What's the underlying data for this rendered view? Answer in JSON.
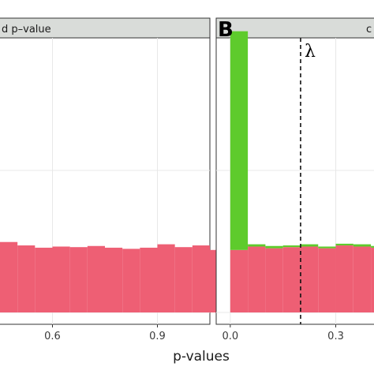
{
  "chart_data": {
    "type": "bar",
    "xlabel": "p-values",
    "colors": {
      "bar_main": "#ee5f74",
      "bar_top": "#5ecb2c",
      "strip_bg": "#d9dcd9",
      "grid": "#e8e8e8"
    },
    "panels": [
      {
        "strip_label": "d p–value",
        "letter": "",
        "xlim": [
          0.45,
          1.05
        ],
        "x_ticks": [
          {
            "value": 0.6,
            "label": "0.6"
          },
          {
            "value": 0.9,
            "label": "0.9"
          }
        ],
        "bins": [
          {
            "x": 0.45,
            "main": 0.124,
            "top": 0
          },
          {
            "x": 0.5,
            "main": 0.118,
            "top": 0
          },
          {
            "x": 0.55,
            "main": 0.114,
            "top": 0
          },
          {
            "x": 0.6,
            "main": 0.116,
            "top": 0
          },
          {
            "x": 0.65,
            "main": 0.115,
            "top": 0
          },
          {
            "x": 0.7,
            "main": 0.117,
            "top": 0
          },
          {
            "x": 0.75,
            "main": 0.114,
            "top": 0
          },
          {
            "x": 0.8,
            "main": 0.112,
            "top": 0
          },
          {
            "x": 0.85,
            "main": 0.114,
            "top": 0
          },
          {
            "x": 0.9,
            "main": 0.12,
            "top": 0
          },
          {
            "x": 0.95,
            "main": 0.115,
            "top": 0
          },
          {
            "x": 1.0,
            "main": 0.118,
            "top": 0
          },
          {
            "x": 1.05,
            "main": 0.11,
            "top": 0
          }
        ]
      },
      {
        "strip_label": "c",
        "letter": "B",
        "xlim": [
          -0.04,
          0.42
        ],
        "x_ticks": [
          {
            "value": 0.0,
            "label": "0.0"
          },
          {
            "value": 0.3,
            "label": "0.3"
          }
        ],
        "lambda_value": 0.2,
        "lambda_label": "λ",
        "bins": [
          {
            "x": 0.0,
            "main": 0.11,
            "top": 0.385
          },
          {
            "x": 0.05,
            "main": 0.116,
            "top": 0.004
          },
          {
            "x": 0.1,
            "main": 0.113,
            "top": 0.004
          },
          {
            "x": 0.15,
            "main": 0.115,
            "top": 0.003
          },
          {
            "x": 0.2,
            "main": 0.116,
            "top": 0.004
          },
          {
            "x": 0.25,
            "main": 0.113,
            "top": 0.003
          },
          {
            "x": 0.3,
            "main": 0.118,
            "top": 0.003
          },
          {
            "x": 0.35,
            "main": 0.116,
            "top": 0.004
          },
          {
            "x": 0.4,
            "main": 0.114,
            "top": 0.003
          }
        ]
      }
    ]
  }
}
